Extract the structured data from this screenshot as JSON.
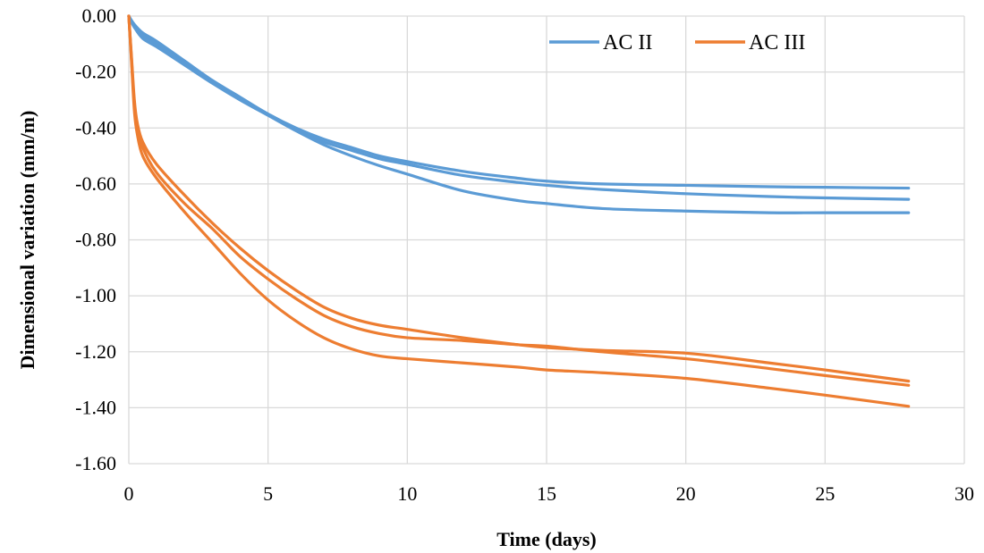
{
  "chart_data": {
    "type": "line",
    "xlabel": "Time (days)",
    "ylabel": "Dimensional variation (mm/m)",
    "xlim": [
      0,
      30
    ],
    "ylim": [
      -1.6,
      0
    ],
    "xticks": [
      0,
      5,
      10,
      15,
      20,
      25,
      30
    ],
    "yticks": [
      0,
      -0.2,
      -0.4,
      -0.6,
      -0.8,
      -1.0,
      -1.2,
      -1.4,
      -1.6
    ],
    "x_tick_labels": [
      "0",
      "5",
      "10",
      "15",
      "20",
      "25",
      "30"
    ],
    "y_tick_labels": [
      "0.00",
      "-0.20",
      "-0.40",
      "-0.60",
      "-0.80",
      "-1.00",
      "-1.20",
      "-1.40",
      "-1.60"
    ],
    "grid": true,
    "legend": {
      "position": "top-right",
      "entries": [
        {
          "label": "AC II",
          "color": "#5b9bd5"
        },
        {
          "label": "AC III",
          "color": "#ed7d31"
        }
      ]
    },
    "series": [
      {
        "group": "AC II",
        "color": "#5b9bd5",
        "x": [
          0,
          0.2,
          0.5,
          1,
          2,
          3,
          4,
          5,
          6,
          7,
          8,
          9,
          10,
          12,
          14,
          15,
          17,
          20,
          23,
          25,
          28
        ],
        "y": [
          0,
          -0.03,
          -0.06,
          -0.09,
          -0.16,
          -0.23,
          -0.29,
          -0.35,
          -0.4,
          -0.44,
          -0.47,
          -0.5,
          -0.52,
          -0.555,
          -0.58,
          -0.59,
          -0.6,
          -0.605,
          -0.61,
          -0.612,
          -0.615
        ]
      },
      {
        "group": "AC II",
        "color": "#5b9bd5",
        "x": [
          0,
          0.2,
          0.5,
          1,
          2,
          3,
          4,
          5,
          6,
          7,
          8,
          9,
          10,
          12,
          14,
          15,
          17,
          20,
          23,
          25,
          28
        ],
        "y": [
          0,
          -0.04,
          -0.07,
          -0.1,
          -0.17,
          -0.235,
          -0.295,
          -0.35,
          -0.405,
          -0.45,
          -0.48,
          -0.51,
          -0.53,
          -0.57,
          -0.595,
          -0.605,
          -0.62,
          -0.635,
          -0.645,
          -0.65,
          -0.655
        ]
      },
      {
        "group": "AC II",
        "color": "#5b9bd5",
        "x": [
          0,
          0.2,
          0.5,
          1,
          2,
          3,
          4,
          5,
          6,
          7,
          8,
          9,
          10,
          12,
          14,
          15,
          17,
          20,
          23,
          25,
          28
        ],
        "y": [
          0,
          -0.04,
          -0.08,
          -0.11,
          -0.175,
          -0.24,
          -0.3,
          -0.355,
          -0.41,
          -0.46,
          -0.5,
          -0.535,
          -0.565,
          -0.625,
          -0.66,
          -0.67,
          -0.688,
          -0.697,
          -0.703,
          -0.703,
          -0.703
        ]
      },
      {
        "group": "AC III",
        "color": "#ed7d31",
        "x": [
          0,
          0.1,
          0.2,
          0.3,
          0.5,
          1,
          2,
          3,
          4,
          5,
          6,
          7,
          8,
          9,
          10,
          12,
          14,
          15,
          17,
          20,
          23,
          25,
          28
        ],
        "y": [
          0,
          -0.15,
          -0.3,
          -0.38,
          -0.45,
          -0.53,
          -0.64,
          -0.74,
          -0.83,
          -0.91,
          -0.98,
          -1.04,
          -1.08,
          -1.105,
          -1.12,
          -1.15,
          -1.175,
          -1.185,
          -1.195,
          -1.205,
          -1.24,
          -1.265,
          -1.305
        ]
      },
      {
        "group": "AC III",
        "color": "#ed7d31",
        "x": [
          0,
          0.1,
          0.2,
          0.3,
          0.5,
          1,
          2,
          3,
          4,
          5,
          6,
          7,
          8,
          9,
          10,
          12,
          14,
          15,
          17,
          20,
          23,
          25,
          28
        ],
        "y": [
          0,
          -0.16,
          -0.32,
          -0.4,
          -0.47,
          -0.56,
          -0.67,
          -0.76,
          -0.86,
          -0.94,
          -1.01,
          -1.07,
          -1.11,
          -1.135,
          -1.15,
          -1.16,
          -1.175,
          -1.18,
          -1.2,
          -1.225,
          -1.26,
          -1.285,
          -1.32
        ]
      },
      {
        "group": "AC III",
        "color": "#ed7d31",
        "x": [
          0,
          0.1,
          0.2,
          0.3,
          0.5,
          1,
          2,
          3,
          4,
          5,
          6,
          7,
          8,
          9,
          10,
          12,
          14,
          15,
          17,
          20,
          23,
          25,
          28
        ],
        "y": [
          0,
          -0.17,
          -0.34,
          -0.42,
          -0.5,
          -0.58,
          -0.7,
          -0.81,
          -0.92,
          -1.015,
          -1.09,
          -1.15,
          -1.19,
          -1.215,
          -1.225,
          -1.24,
          -1.255,
          -1.265,
          -1.275,
          -1.295,
          -1.33,
          -1.355,
          -1.395
        ]
      }
    ]
  }
}
